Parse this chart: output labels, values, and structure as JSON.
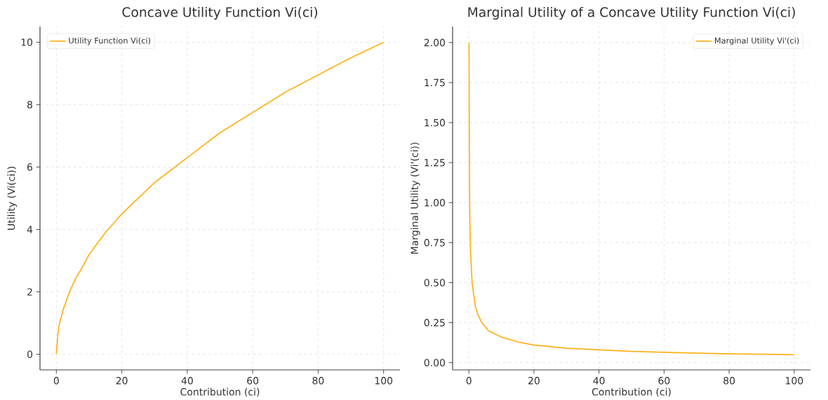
{
  "chart_data": [
    {
      "type": "line",
      "title": "Concave Utility Function Vi(ci)",
      "xlabel": "Contribution (ci)",
      "ylabel": "Utility (Vi(ci))",
      "x": [
        0,
        0.5,
        1,
        2,
        4,
        6,
        8,
        10,
        15,
        20,
        30,
        40,
        50,
        60,
        70,
        80,
        90,
        100
      ],
      "series": [
        {
          "name": "Utility Function Vi(ci)",
          "color": "#ffb11b",
          "values": [
            0,
            0.7,
            1,
            1.4,
            2,
            2.45,
            2.8,
            3.2,
            3.9,
            4.5,
            5.5,
            6.3,
            7.1,
            7.75,
            8.4,
            8.95,
            9.5,
            10
          ]
        }
      ],
      "xlim": [
        -5,
        105
      ],
      "ylim": [
        -0.5,
        10.5
      ],
      "xticks": [
        0,
        20,
        40,
        60,
        80,
        100
      ],
      "yticks": [
        0,
        2,
        4,
        6,
        8,
        10
      ],
      "grid": true,
      "legend": "top left"
    },
    {
      "type": "line",
      "title": "Marginal Utility of a Concave Utility Function Vi(ci)",
      "xlabel": "Contribution (ci)",
      "ylabel": "Marginal Utility (Vi'(ci))",
      "x": [
        0.06,
        0.1,
        0.2,
        0.3,
        0.5,
        1,
        2,
        3,
        4,
        6,
        8,
        10,
        15,
        20,
        30,
        40,
        50,
        60,
        70,
        80,
        90,
        100
      ],
      "series": [
        {
          "name": "Marginal Utility Vi'(ci)",
          "color": "#ffb11b",
          "values": [
            2.0,
            1.55,
            1.1,
            0.9,
            0.7,
            0.5,
            0.35,
            0.29,
            0.25,
            0.2,
            0.18,
            0.16,
            0.13,
            0.11,
            0.09,
            0.08,
            0.07,
            0.065,
            0.06,
            0.055,
            0.053,
            0.05
          ]
        }
      ],
      "xlim": [
        -5,
        105
      ],
      "ylim": [
        -0.045,
        2.1
      ],
      "xticks": [
        0,
        20,
        40,
        60,
        80,
        100
      ],
      "yticks": [
        {
          "value": 0,
          "label": "0.00"
        },
        {
          "value": 0.25,
          "label": "0.25"
        },
        {
          "value": 0.5,
          "label": "0.50"
        },
        {
          "value": 0.75,
          "label": "0.75"
        },
        {
          "value": 1,
          "label": "1.00"
        },
        {
          "value": 1.25,
          "label": "1.25"
        },
        {
          "value": 1.5,
          "label": "1.50"
        },
        {
          "value": 1.75,
          "label": "1.75"
        },
        {
          "value": 2,
          "label": "2.00"
        }
      ],
      "grid": true,
      "legend": "top right"
    }
  ]
}
